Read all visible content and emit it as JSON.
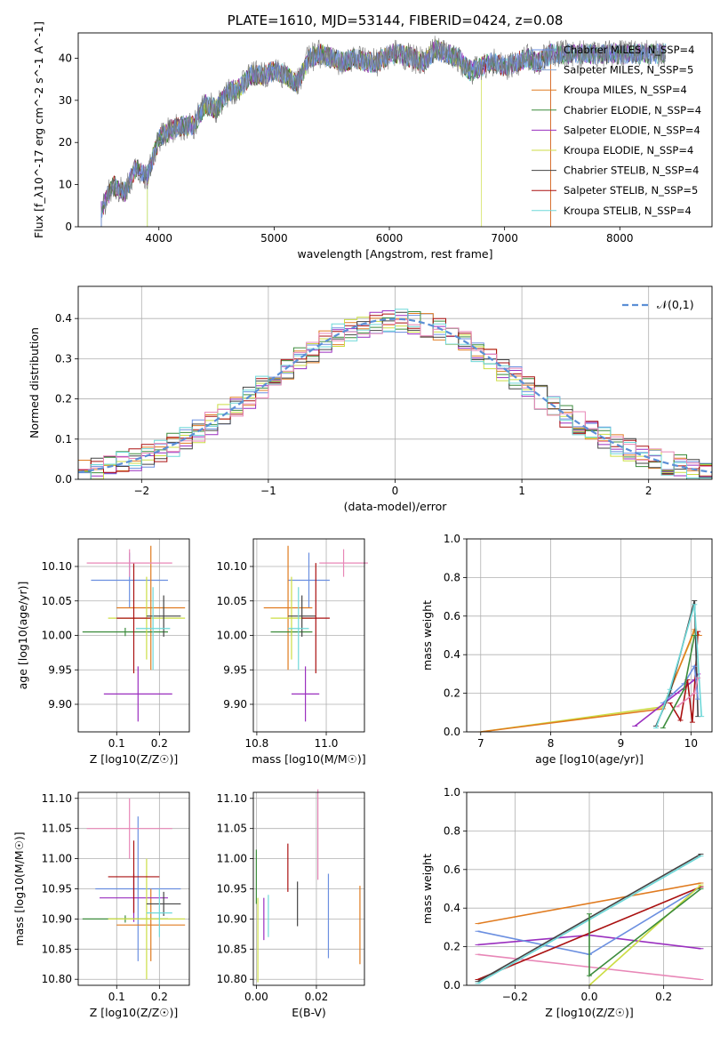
{
  "colors": {
    "Chabrier MILES": "#6b8fe0",
    "Salpeter MILES": "#e8e8e8",
    "Kroupa MILES": "#e07b20",
    "Chabrier ELODIE": "#3c8c3c",
    "Salpeter ELODIE": "#9a2fbf",
    "Kroupa ELODIE": "#ccdd44",
    "Chabrier STELIB": "#444444",
    "Salpeter STELIB": "#aa1111",
    "Kroupa STELIB": "#6dd8d8",
    "pink": "#e887b7",
    "normal_curve": "#5b8fd6"
  },
  "chart_data": [
    {
      "type": "line",
      "title": "PLATE=1610, MJD=53144, FIBERID=0424, z=0.08",
      "xlabel": "wavelength [Angstrom, rest frame]",
      "ylabel": "Flux [f_λ10^-17 erg cm^-2 s^-1 A^-1]",
      "xlim": [
        3300,
        8800
      ],
      "ylim": [
        0,
        46
      ],
      "xticks": [
        "4000",
        "5000",
        "6000",
        "7000",
        "8000"
      ],
      "yticks": [
        "0",
        "10",
        "20",
        "30",
        "40"
      ],
      "legend_position": "right",
      "legend": [
        "Chabrier MILES, N_SSP=4",
        "Salpeter MILES, N_SSP=5",
        "Kroupa MILES, N_SSP=4",
        "Chabrier ELODIE, N_SSP=4",
        "Salpeter ELODIE, N_SSP=4",
        "Kroupa ELODIE, N_SSP=4",
        "Chabrier STELIB, N_SSP=4",
        "Salpeter STELIB, N_SSP=5",
        "Kroupa STELIB, N_SSP=4"
      ],
      "spectrum_x": [
        3500,
        3600,
        3700,
        3800,
        3900,
        4000,
        4100,
        4200,
        4300,
        4400,
        4500,
        4600,
        4700,
        4800,
        4900,
        5000,
        5100,
        5200,
        5300,
        5400,
        5500,
        5600,
        5700,
        5800,
        5900,
        6000,
        6100,
        6200,
        6300,
        6400,
        6500,
        6600,
        6700,
        6800,
        6900,
        7000,
        7100,
        7200,
        7300,
        7400
      ],
      "spectrum_y": [
        4,
        10,
        8,
        14,
        12,
        21,
        23,
        24,
        24,
        29,
        28,
        32,
        33,
        36,
        36,
        37,
        36,
        34,
        40,
        41,
        40,
        39,
        40,
        39,
        39,
        41,
        41,
        40,
        39,
        42,
        41,
        40,
        37,
        38,
        39,
        38,
        39,
        40,
        39,
        41
      ],
      "model_starts": [
        3500,
        3500,
        7400,
        3500,
        3500,
        3900,
        3500,
        3500,
        3900
      ],
      "model_ends": [
        8400,
        8400,
        7400,
        8400,
        8400,
        6800,
        8400,
        7400,
        8400
      ]
    },
    {
      "type": "histogram",
      "xlabel": "(data-model)/error",
      "ylabel": "Normed distribution",
      "xlim": [
        -2.5,
        2.5
      ],
      "ylim": [
        0,
        0.48
      ],
      "xticks": [
        "−2",
        "−1",
        "0",
        "1",
        "2"
      ],
      "yticks": [
        "0.0",
        "0.1",
        "0.2",
        "0.3",
        "0.4"
      ],
      "grid": true,
      "legend": "𝒩(0,1)",
      "legend_position": "top-right",
      "bin_width": 0.1
    },
    {
      "type": "errorbar",
      "xlabel": "Z [log10(Z/Z☉)]",
      "ylabel": "age  [log10(age/yr)]",
      "xticks": [
        "0.1",
        "0.2"
      ],
      "yticks": [
        "9.90",
        "9.95",
        "10.00",
        "10.05",
        "10.10"
      ],
      "xlim": [
        0.01,
        0.27
      ],
      "ylim": [
        9.86,
        10.14
      ],
      "grid": true,
      "points": [
        {
          "x": 0.13,
          "y": 10.08,
          "xerr": 0.09,
          "yerr": 0.04
        },
        {
          "x": 0.18,
          "y": 10.04,
          "xerr": 0.08,
          "yerr": 0.09
        },
        {
          "x": 0.12,
          "y": 10.005,
          "xerr": 0.1,
          "yerr": 0.006
        },
        {
          "x": 0.15,
          "y": 9.915,
          "xerr": 0.08,
          "yerr": 0.04
        },
        {
          "x": 0.17,
          "y": 10.025,
          "xerr": 0.09,
          "yerr": 0.06
        },
        {
          "x": 0.21,
          "y": 10.028,
          "xerr": 0.04,
          "yerr": 0.03
        },
        {
          "x": 0.14,
          "y": 10.025,
          "xerr": 0.04,
          "yerr": 0.08
        },
        {
          "x": 0.185,
          "y": 10.01,
          "xerr": 0.04,
          "yerr": 0.06
        },
        {
          "x": 0.13,
          "y": 10.105,
          "xerr": 0.1,
          "yerr": 0.02
        }
      ]
    },
    {
      "type": "errorbar",
      "xlabel": "mass [log10(M/M☉)]",
      "xticks": [
        "10.8",
        "11.0"
      ],
      "yticks": [
        "9.90",
        "9.95",
        "10.00",
        "10.05",
        "10.10"
      ],
      "xlim": [
        10.79,
        11.11
      ],
      "ylim": [
        9.86,
        10.14
      ],
      "grid": true,
      "points": [
        {
          "x": 10.95,
          "y": 10.08,
          "xerr": 0.06,
          "yerr": 0.04
        },
        {
          "x": 10.89,
          "y": 10.04,
          "xerr": 0.07,
          "yerr": 0.09
        },
        {
          "x": 10.9,
          "y": 10.005,
          "xerr": 0.06,
          "yerr": 0.006
        },
        {
          "x": 10.94,
          "y": 9.915,
          "xerr": 0.04,
          "yerr": 0.04
        },
        {
          "x": 10.9,
          "y": 10.025,
          "xerr": 0.06,
          "yerr": 0.06
        },
        {
          "x": 10.93,
          "y": 10.028,
          "xerr": 0.04,
          "yerr": 0.03
        },
        {
          "x": 10.97,
          "y": 10.025,
          "xerr": 0.04,
          "yerr": 0.08
        },
        {
          "x": 10.92,
          "y": 10.01,
          "xerr": 0.03,
          "yerr": 0.06
        },
        {
          "x": 11.05,
          "y": 10.105,
          "xerr": 0.07,
          "yerr": 0.02
        }
      ]
    },
    {
      "type": "line",
      "xlabel": "age  [log10(age/yr)]",
      "ylabel": "mass weight",
      "xticks": [
        "7",
        "8",
        "9",
        "10"
      ],
      "yticks": [
        "0.0",
        "0.2",
        "0.4",
        "0.6",
        "0.8",
        "1.0"
      ],
      "xlim": [
        6.8,
        10.3
      ],
      "ylim": [
        0,
        1
      ],
      "grid": true
    },
    {
      "type": "errorbar",
      "xlabel": "Z [log10(Z/Z☉)]",
      "ylabel": "mass [log10(M/M☉)]",
      "xticks": [
        "0.1",
        "0.2"
      ],
      "yticks": [
        "10.80",
        "10.85",
        "10.90",
        "10.95",
        "11.00",
        "11.05",
        "11.10"
      ],
      "xlim": [
        0.01,
        0.27
      ],
      "ylim": [
        10.79,
        11.11
      ],
      "grid": true,
      "points": [
        {
          "x": 0.15,
          "y": 10.95,
          "xerr": 0.1,
          "yerr": 0.12
        },
        {
          "x": 0.18,
          "y": 10.89,
          "xerr": 0.08,
          "yerr": 0.06
        },
        {
          "x": 0.12,
          "y": 10.9,
          "xerr": 0.1,
          "yerr": 0.006
        },
        {
          "x": 0.14,
          "y": 10.935,
          "xerr": 0.08,
          "yerr": 0.04
        },
        {
          "x": 0.17,
          "y": 10.9,
          "xerr": 0.09,
          "yerr": 0.1
        },
        {
          "x": 0.21,
          "y": 10.925,
          "xerr": 0.04,
          "yerr": 0.02
        },
        {
          "x": 0.14,
          "y": 10.97,
          "xerr": 0.06,
          "yerr": 0.06
        },
        {
          "x": 0.2,
          "y": 10.91,
          "xerr": 0.03,
          "yerr": 0.04
        },
        {
          "x": 0.13,
          "y": 11.05,
          "xerr": 0.1,
          "yerr": 0.05
        }
      ]
    },
    {
      "type": "errorbar",
      "xlabel": "E(B-V)",
      "xticks": [
        "0.00",
        "0.02"
      ],
      "yticks": [
        "10.80",
        "10.85",
        "10.90",
        "10.95",
        "11.00",
        "11.05",
        "11.10"
      ],
      "xlim": [
        -0.001,
        0.036
      ],
      "ylim": [
        10.79,
        11.11
      ],
      "grid": true,
      "points": [
        {
          "x": 0.024,
          "y": 10.905,
          "yerr": 0.07
        },
        {
          "x": 0.0345,
          "y": 10.89,
          "yerr": 0.065
        },
        {
          "x": 0.0,
          "y": 10.97,
          "yerr": 0.045
        },
        {
          "x": 0.0025,
          "y": 10.9,
          "yerr": 0.035
        },
        {
          "x": 0.0005,
          "y": 10.865,
          "yerr": 0.07
        },
        {
          "x": 0.0137,
          "y": 10.925,
          "yerr": 0.037
        },
        {
          "x": 0.0105,
          "y": 10.985,
          "yerr": 0.04
        },
        {
          "x": 0.004,
          "y": 10.905,
          "yerr": 0.035
        },
        {
          "x": 0.0205,
          "y": 11.04,
          "yerr": 0.075
        }
      ]
    },
    {
      "type": "line",
      "xlabel": "Z [log10(Z/Z☉)]",
      "ylabel": "mass weight",
      "xticks": [
        "−0.2",
        "0.0",
        "0.2"
      ],
      "yticks": [
        "0.0",
        "0.2",
        "0.4",
        "0.6",
        "0.8",
        "1.0"
      ],
      "xlim": [
        -0.33,
        0.33
      ],
      "ylim": [
        0,
        1
      ],
      "grid": true
    }
  ]
}
